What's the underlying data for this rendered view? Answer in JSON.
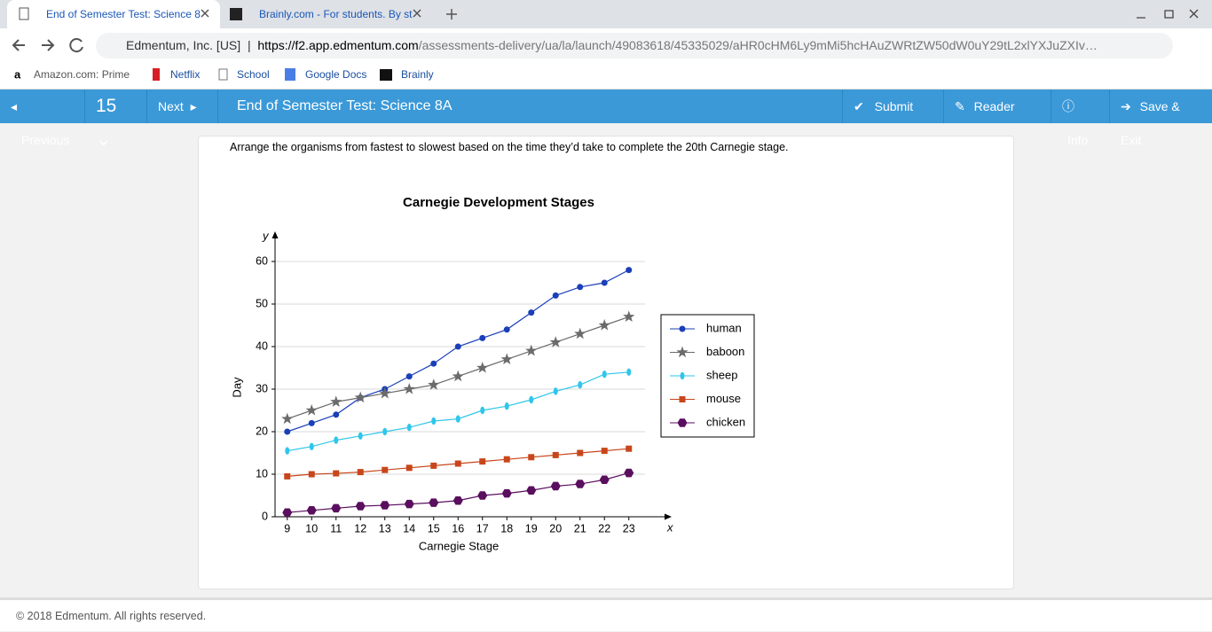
{
  "browser": {
    "tabs": [
      "End of Semester Test: Science 8",
      "Brainly.com - For students. By st"
    ],
    "site_name": "Edmentum, Inc. [US]",
    "url_host": "https://f2.app.edmentum.com",
    "url_path": "/assessments-delivery/ua/la/launch/49083618/45335029/aHR0cHM6Ly9mMi5hcHAuZWRtZW50dW0uY29tL2xlYXJuZXIv…",
    "bookmarks": [
      "Amazon.com: Prime",
      "Netflix",
      "School",
      "Google Docs",
      "Brainly"
    ]
  },
  "toolbar": {
    "previous": "Previous",
    "question_number": "15",
    "next": "Next",
    "test_title": "End of Semester Test: Science 8A",
    "submit": "Submit Test",
    "reader_tools": "Reader Tools",
    "info": "Info",
    "save_exit": "Save & Exit"
  },
  "question": "Arrange the organisms from fastest to slowest based on the time they’d take to complete the 20th Carnegie stage.",
  "chart_data": {
    "type": "line",
    "title": "Carnegie Development Stages",
    "x_label": "Carnegie Stage",
    "y_label": "Day",
    "x_axis_symbol": "x",
    "y_axis_symbol": "y",
    "x": [
      9,
      10,
      11,
      12,
      13,
      14,
      15,
      16,
      17,
      18,
      19,
      20,
      21,
      22,
      23
    ],
    "xlim": [
      8.5,
      24.5
    ],
    "xticks": [
      9,
      10,
      11,
      12,
      13,
      14,
      15,
      16,
      17,
      18,
      19,
      20,
      21,
      22,
      23
    ],
    "ylim": [
      0,
      60
    ],
    "yticks": [
      0,
      10,
      20,
      30,
      40,
      50,
      60
    ],
    "grid": true,
    "legend": "right",
    "series": [
      {
        "name": "human",
        "color": "#1a3fb8",
        "marker": "circle",
        "values": [
          20,
          22,
          24,
          28,
          30,
          33,
          36,
          40,
          42,
          44,
          48,
          52,
          54,
          55,
          58
        ]
      },
      {
        "name": "baboon",
        "color": "#6b6b6b",
        "marker": "star",
        "values": [
          23,
          25,
          27,
          28,
          29,
          30,
          31,
          33,
          35,
          37,
          39,
          41,
          43,
          45,
          47
        ]
      },
      {
        "name": "sheep",
        "color": "#2fc6ea",
        "marker": "ellipse",
        "values": [
          15.5,
          16.5,
          18,
          19,
          20,
          21,
          22.5,
          23,
          25,
          26,
          27.5,
          29.5,
          31,
          33.5,
          34
        ]
      },
      {
        "name": "mouse",
        "color": "#c8461b",
        "marker": "square",
        "values": [
          9.5,
          10,
          10.2,
          10.5,
          11,
          11.5,
          12,
          12.5,
          13,
          13.5,
          14,
          14.5,
          15,
          15.5,
          16
        ]
      },
      {
        "name": "chicken",
        "color": "#5a0f5e",
        "marker": "hexagon",
        "values": [
          1,
          1.5,
          2,
          2.5,
          2.7,
          3,
          3.3,
          3.8,
          5,
          5.5,
          6.2,
          7.2,
          7.7,
          8.7,
          10.3
        ]
      }
    ]
  },
  "footer": "© 2018 Edmentum. All rights reserved."
}
